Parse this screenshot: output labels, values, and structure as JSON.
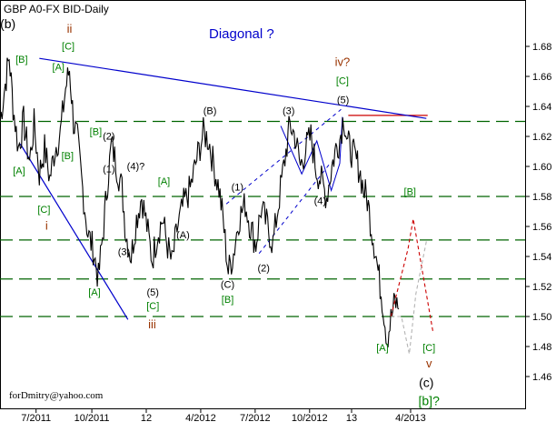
{
  "chart_data": {
    "type": "line",
    "title": "GBP A0-FX BID-Daily",
    "subtitle": "Diagonal ?",
    "watermark": "forDmitry@yahoo.com",
    "ylim": [
      1.44,
      1.7
    ],
    "xlim": [
      0,
      800
    ],
    "yticks": [
      "1.46",
      "1.48",
      "1.50",
      "1.52",
      "1.54",
      "1.56",
      "1.58",
      "1.60",
      "1.62",
      "1.64",
      "1.66",
      "1.68"
    ],
    "ytick_values": [
      1.46,
      1.48,
      1.5,
      1.52,
      1.54,
      1.56,
      1.58,
      1.6,
      1.62,
      1.64,
      1.66,
      1.68
    ],
    "xticks": [
      {
        "label": "7/2011",
        "x": 55
      },
      {
        "label": "10/2011",
        "x": 140
      },
      {
        "label": "12",
        "x": 223
      },
      {
        "label": "4/2012",
        "x": 306
      },
      {
        "label": "7/2012",
        "x": 389
      },
      {
        "label": "10/2012",
        "x": 472
      },
      {
        "label": "13",
        "x": 536
      },
      {
        "label": "4/2013",
        "x": 626
      }
    ],
    "grid": false,
    "colors": {
      "price": "#000000",
      "support": "#006400",
      "trendline": "#0000cc",
      "resistance": "#cc0000",
      "projection_red": "#cc0000",
      "projection_gray": "#b4b4b4",
      "label_black": "#000000",
      "label_green": "#008000",
      "label_red": "#993300"
    },
    "horizontal_levels": [
      1.5,
      1.525,
      1.551,
      1.58,
      1.63
    ],
    "resistance_level": {
      "y": 1.634,
      "x0": 531,
      "x1": 652
    },
    "trendlines": [
      {
        "name": "upper",
        "x0": 60,
        "y0": 1.672,
        "x1": 650,
        "y1": 1.632
      },
      {
        "name": "lower",
        "x0": 31,
        "y0": 1.615,
        "x1": 195,
        "y1": 1.498
      }
    ],
    "dashed_lines": [
      {
        "x0": 345,
        "y0": 1.575,
        "x1": 520,
        "y1": 1.638
      },
      {
        "x0": 395,
        "y0": 1.542,
        "x1": 505,
        "y1": 1.603
      }
    ],
    "wave_segments": [
      [
        [
          428,
          1.627
        ],
        [
          460,
          1.595
        ],
        [
          483,
          1.617
        ],
        [
          505,
          1.584
        ],
        [
          518,
          1.602
        ],
        [
          522,
          1.633
        ]
      ]
    ],
    "projections": [
      {
        "color": "red",
        "points": [
          [
            596,
            1.5
          ],
          [
            622,
            1.545
          ],
          [
            630,
            1.565
          ],
          [
            652,
            1.51
          ],
          [
            660,
            1.49
          ]
        ]
      },
      {
        "color": "gray",
        "points": [
          [
            596,
            1.5
          ],
          [
            612,
            1.5
          ],
          [
            624,
            1.475
          ],
          [
            634,
            1.515
          ],
          [
            650,
            1.55
          ]
        ]
      }
    ],
    "price_keypoints": [
      [
        0,
        1.63
      ],
      [
        8,
        1.655
      ],
      [
        14,
        1.673
      ],
      [
        20,
        1.64
      ],
      [
        28,
        1.612
      ],
      [
        36,
        1.63
      ],
      [
        45,
        1.603
      ],
      [
        52,
        1.628
      ],
      [
        60,
        1.595
      ],
      [
        68,
        1.612
      ],
      [
        76,
        1.592
      ],
      [
        84,
        1.612
      ],
      [
        92,
        1.622
      ],
      [
        100,
        1.652
      ],
      [
        106,
        1.665
      ],
      [
        112,
        1.63
      ],
      [
        118,
        1.618
      ],
      [
        126,
        1.585
      ],
      [
        134,
        1.555
      ],
      [
        142,
        1.545
      ],
      [
        150,
        1.525
      ],
      [
        158,
        1.56
      ],
      [
        164,
        1.59
      ],
      [
        170,
        1.615
      ],
      [
        178,
        1.6
      ],
      [
        186,
        1.585
      ],
      [
        192,
        1.555
      ],
      [
        200,
        1.54
      ],
      [
        208,
        1.565
      ],
      [
        216,
        1.58
      ],
      [
        224,
        1.56
      ],
      [
        232,
        1.538
      ],
      [
        240,
        1.555
      ],
      [
        248,
        1.565
      ],
      [
        254,
        1.55
      ],
      [
        262,
        1.535
      ],
      [
        270,
        1.558
      ],
      [
        280,
        1.575
      ],
      [
        290,
        1.585
      ],
      [
        300,
        1.605
      ],
      [
        310,
        1.622
      ],
      [
        318,
        1.618
      ],
      [
        326,
        1.6
      ],
      [
        334,
        1.585
      ],
      [
        340,
        1.565
      ],
      [
        348,
        1.53
      ],
      [
        356,
        1.542
      ],
      [
        364,
        1.565
      ],
      [
        374,
        1.575
      ],
      [
        382,
        1.56
      ],
      [
        390,
        1.548
      ],
      [
        398,
        1.572
      ],
      [
        408,
        1.56
      ],
      [
        416,
        1.548
      ],
      [
        426,
        1.58
      ],
      [
        436,
        1.61
      ],
      [
        442,
        1.628
      ],
      [
        450,
        1.62
      ],
      [
        458,
        1.6
      ],
      [
        466,
        1.612
      ],
      [
        474,
        1.62
      ],
      [
        482,
        1.598
      ],
      [
        490,
        1.59
      ],
      [
        498,
        1.58
      ],
      [
        506,
        1.6
      ],
      [
        512,
        1.612
      ],
      [
        518,
        1.618
      ],
      [
        524,
        1.634
      ],
      [
        530,
        1.615
      ],
      [
        536,
        1.61
      ],
      [
        542,
        1.605
      ],
      [
        548,
        1.598
      ],
      [
        554,
        1.585
      ],
      [
        560,
        1.578
      ],
      [
        566,
        1.56
      ],
      [
        572,
        1.545
      ],
      [
        578,
        1.525
      ],
      [
        584,
        1.508
      ],
      [
        590,
        1.485
      ],
      [
        596,
        1.498
      ],
      [
        602,
        1.51
      ],
      [
        608,
        1.505
      ]
    ],
    "annotations": [
      {
        "text": "(b)",
        "x": 12,
        "y": 1.692,
        "color": "label_black",
        "size": 14
      },
      {
        "text": "ii",
        "x": 106,
        "y": 1.689,
        "color": "label_red",
        "size": 13
      },
      {
        "text": "[C]",
        "x": 104,
        "y": 1.678,
        "color": "label_green"
      },
      {
        "text": "[B]",
        "x": 33,
        "y": 1.669,
        "color": "label_green"
      },
      {
        "text": "[A]",
        "x": 89,
        "y": 1.664,
        "color": "label_green"
      },
      {
        "text": "[B]",
        "x": 146,
        "y": 1.621,
        "color": "label_green"
      },
      {
        "text": "(2)",
        "x": 166,
        "y": 1.618,
        "color": "label_black"
      },
      {
        "text": "[B]",
        "x": 103,
        "y": 1.605,
        "color": "label_green"
      },
      {
        "text": "[A]",
        "x": 29,
        "y": 1.595,
        "color": "label_green"
      },
      {
        "text": "(1)",
        "x": 166,
        "y": 1.596,
        "color": "label_black"
      },
      {
        "text": "(4)?",
        "x": 207,
        "y": 1.598,
        "color": "label_black"
      },
      {
        "text": "[C]",
        "x": 67,
        "y": 1.569,
        "color": "label_green"
      },
      {
        "text": "i",
        "x": 71,
        "y": 1.558,
        "color": "label_red",
        "size": 13
      },
      {
        "text": "(3)",
        "x": 189,
        "y": 1.541,
        "color": "label_black"
      },
      {
        "text": "[A]",
        "x": 144,
        "y": 1.514,
        "color": "label_green"
      },
      {
        "text": "(5)",
        "x": 233,
        "y": 1.514,
        "color": "label_black"
      },
      {
        "text": "[C]",
        "x": 233,
        "y": 1.505,
        "color": "label_green"
      },
      {
        "text": "iii",
        "x": 232,
        "y": 1.492,
        "color": "label_red",
        "size": 13
      },
      {
        "text": "[A]",
        "x": 250,
        "y": 1.588,
        "color": "label_green"
      },
      {
        "text": "(A)",
        "x": 279,
        "y": 1.552,
        "color": "label_black"
      },
      {
        "text": "(B)",
        "x": 320,
        "y": 1.635,
        "color": "label_black"
      },
      {
        "text": "(C)",
        "x": 347,
        "y": 1.519,
        "color": "label_black"
      },
      {
        "text": "[B]",
        "x": 347,
        "y": 1.509,
        "color": "label_green"
      },
      {
        "text": "(1)",
        "x": 362,
        "y": 1.584,
        "color": "label_black"
      },
      {
        "text": "(2)",
        "x": 402,
        "y": 1.53,
        "color": "label_black"
      },
      {
        "text": "(3)",
        "x": 440,
        "y": 1.635,
        "color": "label_black"
      },
      {
        "text": "(4)",
        "x": 488,
        "y": 1.575,
        "color": "label_black"
      },
      {
        "text": "iv?",
        "x": 522,
        "y": 1.667,
        "color": "label_red",
        "size": 13
      },
      {
        "text": "[C]",
        "x": 522,
        "y": 1.655,
        "color": "label_green"
      },
      {
        "text": "(5)",
        "x": 523,
        "y": 1.642,
        "color": "label_black"
      },
      {
        "text": "[B]",
        "x": 625,
        "y": 1.581,
        "color": "label_green"
      },
      {
        "text": "[A]",
        "x": 583,
        "y": 1.477,
        "color": "label_green"
      },
      {
        "text": "[C]",
        "x": 654,
        "y": 1.477,
        "color": "label_green"
      },
      {
        "text": "v",
        "x": 654,
        "y": 1.466,
        "color": "label_red",
        "size": 13
      },
      {
        "text": "(c)",
        "x": 650,
        "y": 1.453,
        "color": "label_black",
        "size": 14
      },
      {
        "text": "[b]?",
        "x": 654,
        "y": 1.441,
        "color": "label_green",
        "size": 14
      }
    ]
  }
}
